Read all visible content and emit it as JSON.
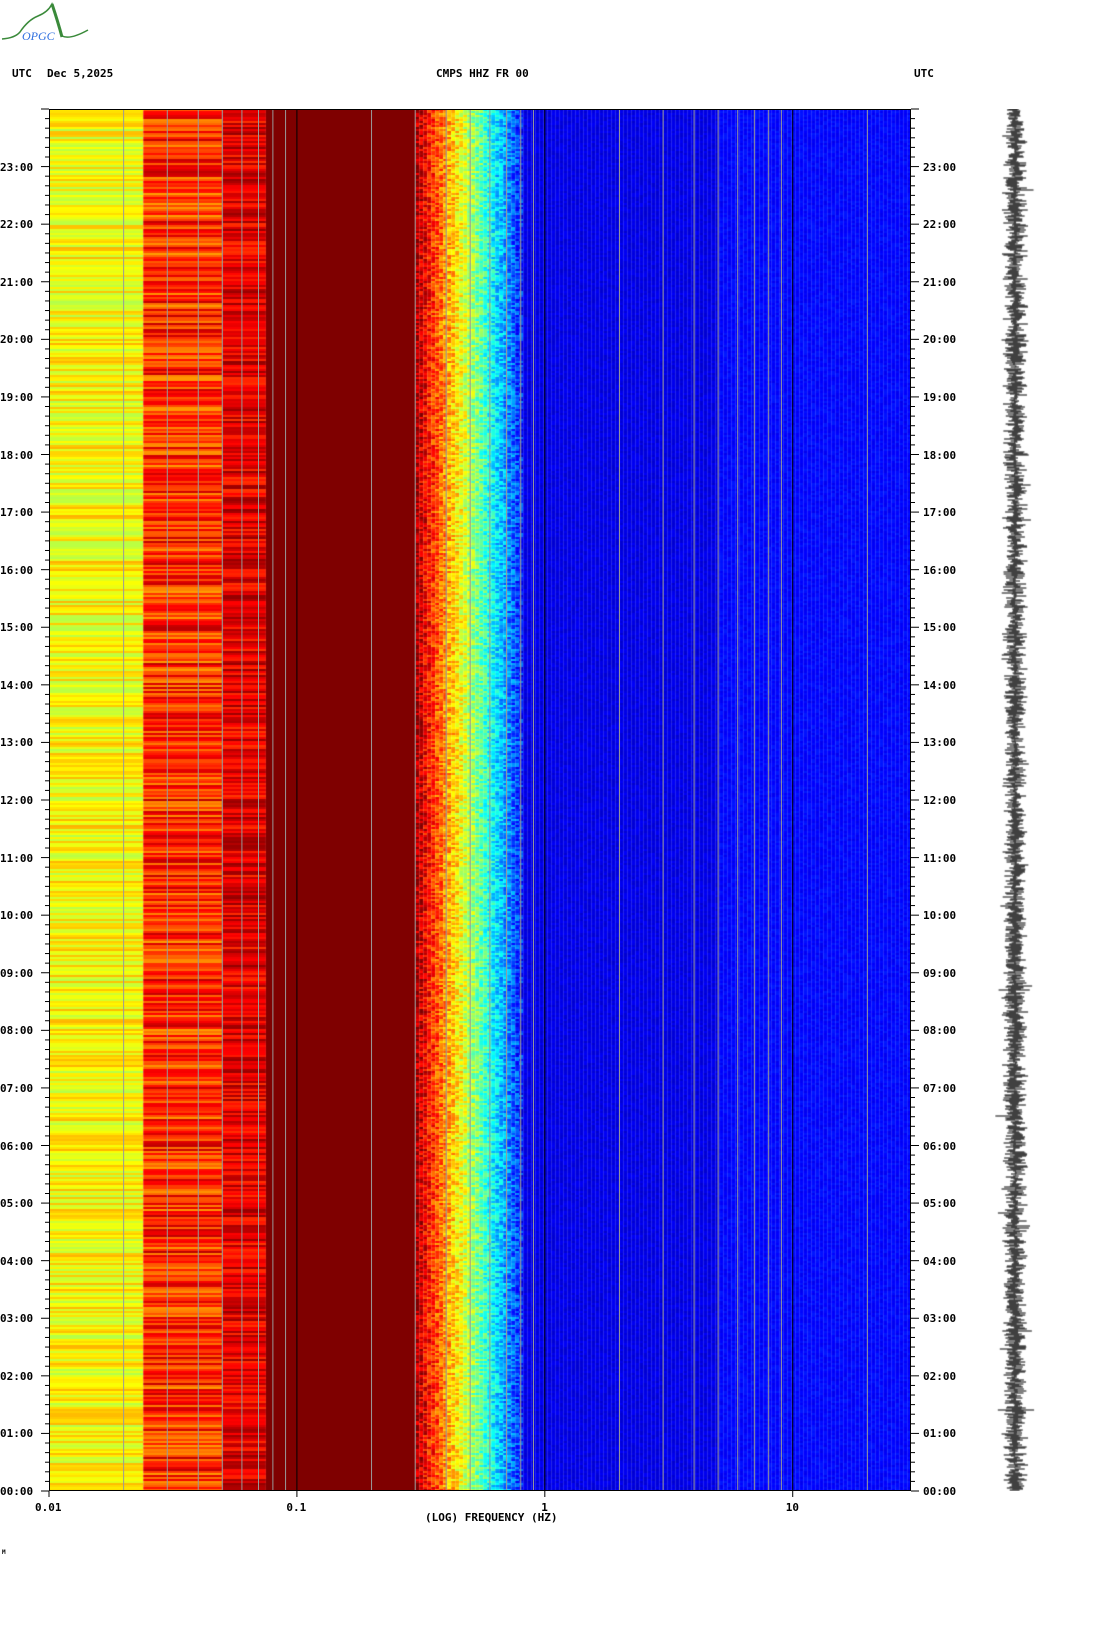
{
  "logo_text": "OPGC",
  "header": {
    "left_tz": "UTC",
    "date": "Dec 5,2025",
    "station": "CMPS HHZ FR 00",
    "right_tz": "UTC"
  },
  "footer_mark": "M",
  "chart_data": {
    "type": "heatmap",
    "title": "CMPS HHZ FR 00",
    "xlabel": "(LOG) FREQUENCY (HZ)",
    "xscale": "log",
    "xlim": [
      0.01,
      30
    ],
    "x_ticks": [
      "0.01",
      "0.1",
      "1",
      "10"
    ],
    "ylabel": "UTC",
    "ylim": [
      "00:00",
      "24:00"
    ],
    "y_ticks": [
      "00:00",
      "01:00",
      "02:00",
      "03:00",
      "04:00",
      "05:00",
      "06:00",
      "07:00",
      "08:00",
      "09:00",
      "10:00",
      "11:00",
      "12:00",
      "13:00",
      "14:00",
      "15:00",
      "16:00",
      "17:00",
      "18:00",
      "19:00",
      "20:00",
      "21:00",
      "22:00",
      "23:00"
    ],
    "colormap": "jet",
    "bands_hz": [
      {
        "from": 0.01,
        "to": 0.024,
        "level": "yellow-green"
      },
      {
        "from": 0.024,
        "to": 0.05,
        "level": "red-orange-yellow"
      },
      {
        "from": 0.05,
        "to": 0.075,
        "level": "red"
      },
      {
        "from": 0.075,
        "to": 0.3,
        "level": "dark red"
      },
      {
        "from": 0.3,
        "to": 0.4,
        "level": "red-yellow"
      },
      {
        "from": 0.4,
        "to": 0.8,
        "level": "cyan-blue"
      },
      {
        "from": 0.8,
        "to": 30,
        "level": "dark blue"
      }
    ],
    "grid": true
  }
}
